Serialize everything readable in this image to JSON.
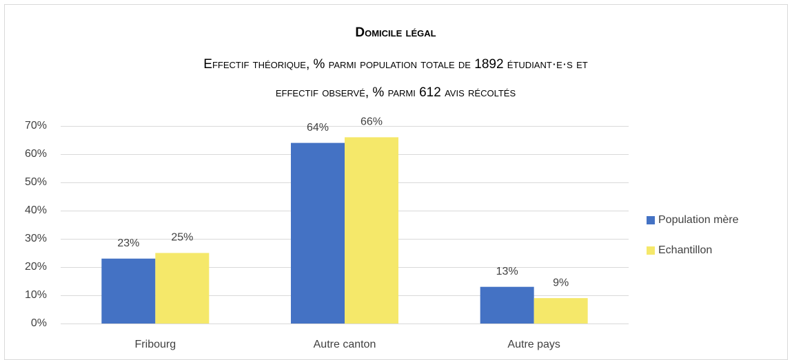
{
  "chart_data": {
    "type": "bar",
    "title": "Domicile légal",
    "subtitle": [
      "Effectif théorique, % parmi population totale de 1892 étudiant·e·s et",
      "effectif observé, % parmi 612 avis récoltés"
    ],
    "categories": [
      "Fribourg",
      "Autre canton",
      "Autre pays"
    ],
    "series": [
      {
        "name": "Population mère",
        "color": "#4472c4",
        "values": [
          23,
          64,
          13
        ],
        "value_labels": [
          "23%",
          "64%",
          "13%"
        ]
      },
      {
        "name": "Echantillon",
        "color": "#f5e86a",
        "values": [
          25,
          66,
          9
        ],
        "value_labels": [
          "25%",
          "66%",
          "9%"
        ]
      }
    ],
    "ylim": [
      0,
      70
    ],
    "yticks": [
      {
        "value": 0,
        "label": "0%"
      },
      {
        "value": 10,
        "label": "10%"
      },
      {
        "value": 20,
        "label": "20%"
      },
      {
        "value": 30,
        "label": "30%"
      },
      {
        "value": 40,
        "label": "40%"
      },
      {
        "value": 50,
        "label": "50%"
      },
      {
        "value": 60,
        "label": "60%"
      },
      {
        "value": 70,
        "label": "70%"
      }
    ],
    "grid": true,
    "legend": "right"
  }
}
